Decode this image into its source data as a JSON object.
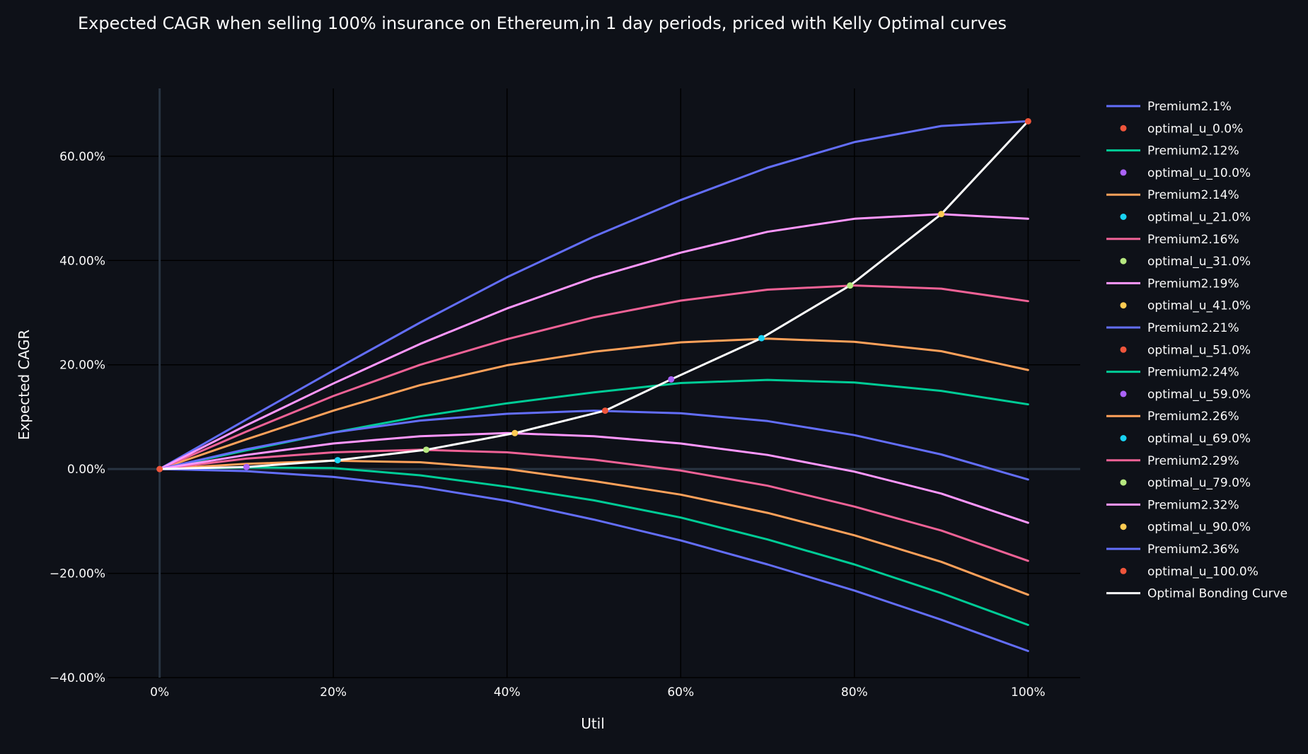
{
  "chart_data": {
    "type": "line",
    "title": "Expected CAGR when selling 100% insurance on Ethereum,in 1 day periods, priced with Kelly Optimal curves",
    "xlabel": "Util",
    "ylabel": "Expected CAGR",
    "xlim": [
      -0.06,
      1.06
    ],
    "ylim": [
      -0.4,
      0.73
    ],
    "x_ticks": [
      0,
      0.2,
      0.4,
      0.6,
      0.8,
      1.0
    ],
    "x_tick_labels": [
      "0%",
      "20%",
      "40%",
      "60%",
      "80%",
      "100%"
    ],
    "y_ticks": [
      -0.4,
      -0.2,
      0,
      0.2,
      0.4,
      0.6
    ],
    "y_tick_labels": [
      "−40.00%",
      "−20.00%",
      "0.00%",
      "20.00%",
      "40.00%",
      "60.00%"
    ],
    "grid": true,
    "legend_position": "right",
    "x": [
      0,
      0.1,
      0.2,
      0.3,
      0.4,
      0.5,
      0.6,
      0.7,
      0.8,
      0.9,
      1.0
    ],
    "series": [
      {
        "name": "Premium2.1%",
        "color": "#636efa",
        "values": [
          0,
          0.095,
          0.189,
          0.281,
          0.368,
          0.446,
          0.516,
          0.578,
          0.627,
          0.658,
          0.667
        ]
      },
      {
        "name": "optimal_u_0.0%",
        "color": "#ef553b",
        "point": [
          0,
          0
        ]
      },
      {
        "name": "Premium2.12%",
        "color": "#00cc96",
        "values": [
          0,
          0.036,
          0.07,
          0.101,
          0.126,
          0.147,
          0.165,
          0.171,
          0.166,
          0.15,
          0.124
        ]
      },
      {
        "name": "optimal_u_10.0%",
        "color": "#ab63fa",
        "point": [
          0.1,
          0.004
        ]
      },
      {
        "name": "Premium2.14%",
        "color": "#ffa15a",
        "values": [
          0,
          0.057,
          0.112,
          0.161,
          0.199,
          0.225,
          0.243,
          0.25,
          0.244,
          0.226,
          0.19
        ]
      },
      {
        "name": "optimal_u_21.0%",
        "color": "#19d3f3",
        "point": [
          0.205,
          0.017
        ]
      },
      {
        "name": "Premium2.16%",
        "color": "#ef6296",
        "values": [
          0,
          0.072,
          0.14,
          0.2,
          0.249,
          0.291,
          0.323,
          0.344,
          0.352,
          0.346,
          0.322
        ]
      },
      {
        "name": "optimal_u_31.0%",
        "color": "#b6e880",
        "point": [
          0.307,
          0.037
        ]
      },
      {
        "name": "Premium2.19%",
        "color": "#ff97ff",
        "values": [
          0,
          0.084,
          0.164,
          0.24,
          0.308,
          0.367,
          0.415,
          0.455,
          0.48,
          0.489,
          0.48
        ]
      },
      {
        "name": "optimal_u_41.0%",
        "color": "#fecb52",
        "point": [
          0.409,
          0.069
        ]
      },
      {
        "name": "Premium2.21%",
        "color": "#636efa",
        "values": [
          0,
          0.038,
          0.07,
          0.093,
          0.106,
          0.112,
          0.107,
          0.092,
          0.065,
          0.028,
          -0.02
        ]
      },
      {
        "name": "optimal_u_51.0%",
        "color": "#ef553b",
        "point": [
          0.513,
          0.112
        ]
      },
      {
        "name": "Premium2.24%",
        "color": "#00cc96",
        "values": [
          0,
          0.003,
          0.002,
          -0.012,
          -0.034,
          -0.06,
          -0.093,
          -0.135,
          -0.183,
          -0.238,
          -0.299
        ]
      },
      {
        "name": "optimal_u_59.0%",
        "color": "#ab63fa",
        "point": [
          0.589,
          0.172
        ]
      },
      {
        "name": "Premium2.26%",
        "color": "#ffa15a",
        "values": [
          0,
          0.01,
          0.016,
          0.013,
          0.0,
          -0.023,
          -0.049,
          -0.084,
          -0.127,
          -0.178,
          -0.241
        ]
      },
      {
        "name": "optimal_u_69.0%",
        "color": "#19d3f3",
        "point": [
          0.693,
          0.251
        ]
      },
      {
        "name": "Premium2.29%",
        "color": "#ef6296",
        "values": [
          0,
          0.02,
          0.032,
          0.037,
          0.032,
          0.018,
          -0.003,
          -0.032,
          -0.072,
          -0.118,
          -0.176
        ]
      },
      {
        "name": "optimal_u_79.0%",
        "color": "#b6e880",
        "point": [
          0.795,
          0.352
        ]
      },
      {
        "name": "Premium2.32%",
        "color": "#ff97ff",
        "values": [
          0,
          0.027,
          0.049,
          0.063,
          0.069,
          0.063,
          0.049,
          0.027,
          -0.005,
          -0.047,
          -0.103
        ]
      },
      {
        "name": "optimal_u_90.0%",
        "color": "#fecb52",
        "point": [
          0.9,
          0.489
        ]
      },
      {
        "name": "Premium2.36%",
        "color": "#636efa",
        "values": [
          0,
          -0.004,
          -0.015,
          -0.034,
          -0.061,
          -0.097,
          -0.137,
          -0.183,
          -0.233,
          -0.289,
          -0.349
        ]
      },
      {
        "name": "optimal_u_100.0%",
        "color": "#ef553b",
        "point": [
          1.0,
          0.667
        ]
      },
      {
        "name": "Optimal Bonding Curve",
        "color": "#ffffff",
        "x": [
          0,
          0.1,
          0.205,
          0.307,
          0.409,
          0.513,
          0.589,
          0.693,
          0.795,
          0.9,
          1.0
        ],
        "values": [
          0,
          0.004,
          0.017,
          0.037,
          0.069,
          0.112,
          0.172,
          0.251,
          0.352,
          0.489,
          0.667
        ]
      }
    ]
  }
}
